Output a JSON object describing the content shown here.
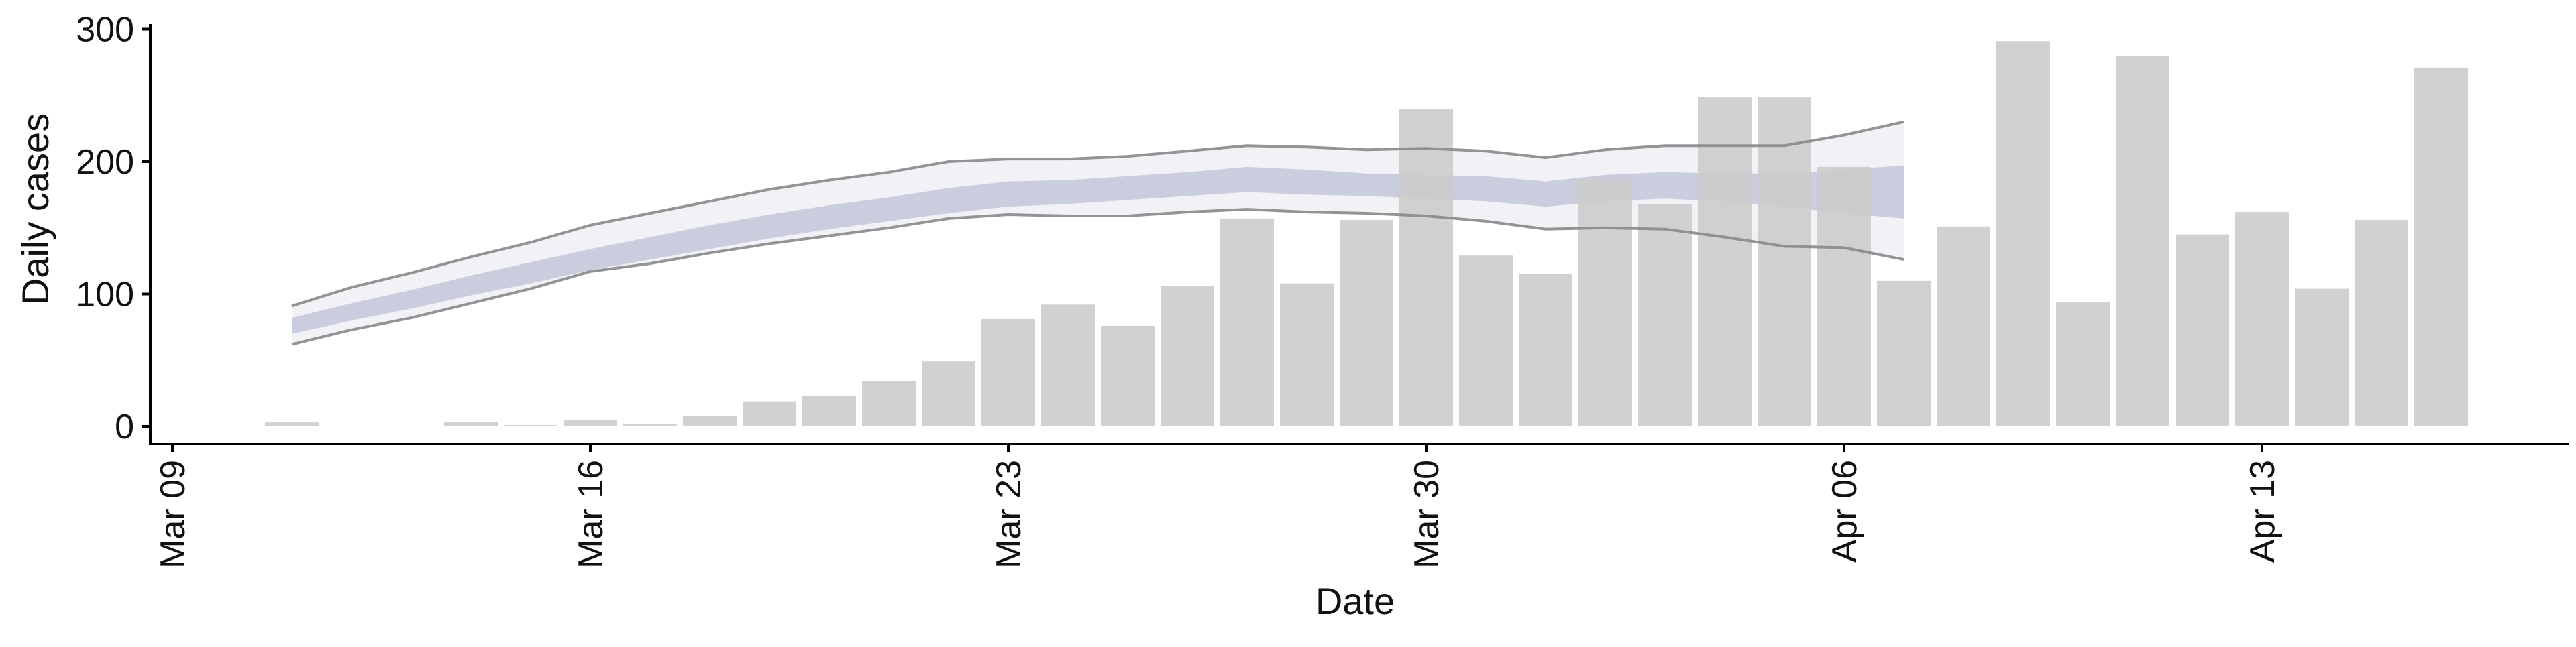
{
  "chart_data": {
    "type": "bar",
    "title": "",
    "xlabel": "Date",
    "ylabel": "Daily cases",
    "x_ticks": [
      "Mar 09",
      "Mar 16",
      "Mar 23",
      "Mar 30",
      "Apr 06",
      "Apr 13"
    ],
    "y_ticks": [
      "0",
      "100",
      "200",
      "300"
    ],
    "ylim": [
      -12,
      305
    ],
    "xlim": [
      "2020-03-09",
      "2020-04-17"
    ],
    "grid": false,
    "legend": "none",
    "bar_color": "#cccccc",
    "line_color": "#888888",
    "band_inner_color": "#c4c9dc",
    "band_outer_color": "#eeeff5",
    "bars": {
      "x": [
        "2020-03-11",
        "2020-03-12",
        "2020-03-13",
        "2020-03-14",
        "2020-03-15",
        "2020-03-16",
        "2020-03-17",
        "2020-03-18",
        "2020-03-19",
        "2020-03-20",
        "2020-03-21",
        "2020-03-22",
        "2020-03-23",
        "2020-03-24",
        "2020-03-25",
        "2020-03-26",
        "2020-03-27",
        "2020-03-28",
        "2020-03-29",
        "2020-03-30",
        "2020-03-31",
        "2020-04-01",
        "2020-04-02",
        "2020-04-03",
        "2020-04-04",
        "2020-04-05",
        "2020-04-06",
        "2020-04-07",
        "2020-04-08",
        "2020-04-09",
        "2020-04-10",
        "2020-04-11",
        "2020-04-12",
        "2020-04-13",
        "2020-04-14",
        "2020-04-15",
        "2020-04-16"
      ],
      "values": [
        3,
        0,
        0,
        3,
        1,
        5,
        2,
        8,
        19,
        23,
        34,
        49,
        81,
        92,
        76,
        106,
        157,
        108,
        156,
        240,
        129,
        115,
        187,
        168,
        249,
        249,
        196,
        110,
        151,
        291,
        94,
        280,
        145,
        162,
        104,
        156,
        271
      ]
    },
    "forecast": {
      "x": [
        "2020-03-11",
        "2020-03-12",
        "2020-03-13",
        "2020-03-14",
        "2020-03-15",
        "2020-03-16",
        "2020-03-17",
        "2020-03-18",
        "2020-03-19",
        "2020-03-20",
        "2020-03-21",
        "2020-03-22",
        "2020-03-23",
        "2020-03-24",
        "2020-03-25",
        "2020-03-26",
        "2020-03-27",
        "2020-03-28",
        "2020-03-29",
        "2020-03-30",
        "2020-03-31",
        "2020-04-01",
        "2020-04-02",
        "2020-04-03",
        "2020-04-04",
        "2020-04-05",
        "2020-04-06",
        "2020-04-07"
      ],
      "outer_upper": [
        91,
        105,
        116,
        128,
        139,
        152,
        161,
        170,
        179,
        186,
        192,
        200,
        202,
        202,
        204,
        208,
        212,
        211,
        209,
        210,
        208,
        203,
        209,
        212,
        212,
        212,
        220,
        230
      ],
      "inner_upper": [
        82,
        93,
        103,
        114,
        124,
        134,
        143,
        152,
        160,
        167,
        173,
        180,
        185,
        186,
        189,
        192,
        196,
        194,
        191,
        190,
        189,
        185,
        190,
        192,
        191,
        191,
        194,
        197
      ],
      "inner_lower": [
        70,
        80,
        89,
        99,
        108,
        118,
        126,
        134,
        142,
        149,
        155,
        161,
        166,
        168,
        171,
        174,
        177,
        175,
        174,
        172,
        170,
        166,
        170,
        172,
        170,
        166,
        161,
        157
      ],
      "outer_lower": [
        62,
        73,
        82,
        93,
        104,
        117,
        123,
        131,
        138,
        144,
        150,
        157,
        160,
        159,
        159,
        162,
        164,
        162,
        161,
        159,
        155,
        149,
        150,
        149,
        143,
        136,
        135,
        126
      ]
    }
  }
}
